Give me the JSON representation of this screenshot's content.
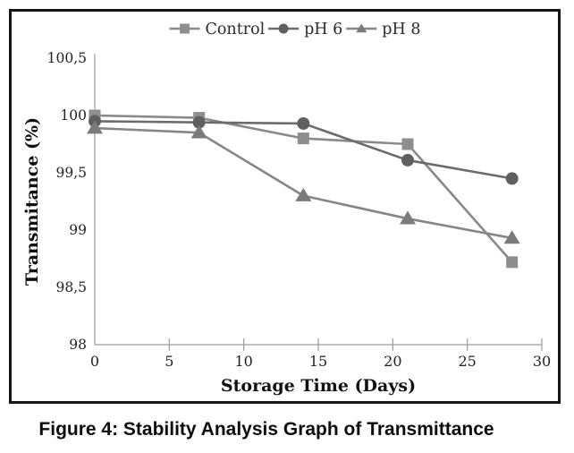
{
  "figure": {
    "caption": "Figure 4: Stability Analysis Graph of Transmittance"
  },
  "chart_data": {
    "type": "line",
    "title": "",
    "xlabel": "Storage Time (Days)",
    "ylabel": "Transmitance (%)",
    "x": [
      0,
      7,
      14,
      21,
      28
    ],
    "series": [
      {
        "name": "Control",
        "marker": "square",
        "color": "#8e8e8e",
        "line_color": "#8a8a8a",
        "values": [
          100.0,
          99.98,
          99.8,
          99.75,
          98.72
        ]
      },
      {
        "name": "pH 6",
        "marker": "circle",
        "color": "#5f5f5f",
        "line_color": "#6b6b6b",
        "values": [
          99.95,
          99.94,
          99.93,
          99.61,
          99.45
        ]
      },
      {
        "name": "pH 8",
        "marker": "triangle",
        "color": "#7b7b7b",
        "line_color": "#868686",
        "values": [
          99.89,
          99.85,
          99.3,
          99.1,
          98.93
        ]
      }
    ],
    "x_ticks": [
      0,
      5,
      10,
      15,
      20,
      25,
      30
    ],
    "y_tick_labels": [
      "98",
      "98,5",
      "99",
      "99,5",
      "100",
      "100,5"
    ],
    "y_tick_values": [
      98,
      98.5,
      99,
      99.5,
      100,
      100.5
    ],
    "xlim": [
      0,
      30
    ],
    "ylim": [
      98,
      100.5
    ],
    "legend_position": "top",
    "grid": false,
    "decimal_separator": ",",
    "axis_color": "#9b9b9b",
    "tick_text_color": "#1f1f1f",
    "axis_title_color": "#111111",
    "frame_color": "#151515"
  }
}
